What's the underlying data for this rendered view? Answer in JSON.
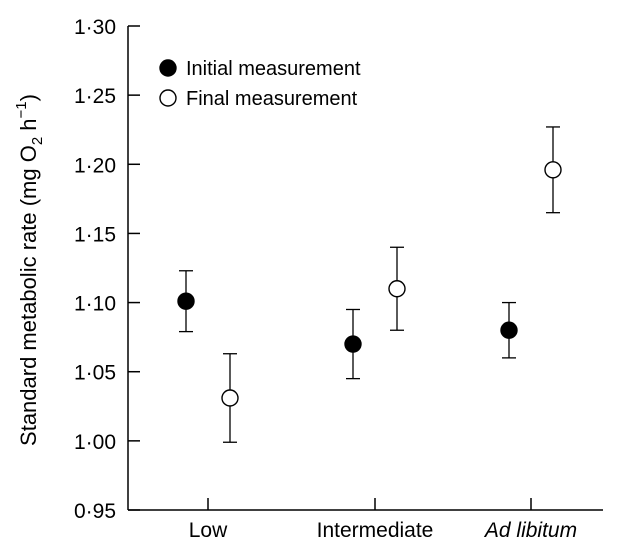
{
  "chart_data": {
    "type": "scatter",
    "categories": [
      "Low",
      "Intermediate",
      "Ad libitum"
    ],
    "category_italic": [
      false,
      false,
      true
    ],
    "ylabel": {
      "main": "Standard metabolic rate (mg O",
      "sub": "2",
      "mid": " h",
      "sup": "−1",
      "close": ")"
    },
    "ylim": [
      0.95,
      1.3
    ],
    "yticks": [
      "0·95",
      "1·00",
      "1·05",
      "1·10",
      "1·15",
      "1·20",
      "1·25",
      "1·30"
    ],
    "legend_position": "top-left",
    "series": [
      {
        "name": "Initial measurement",
        "marker": "filled-circle",
        "color": "#000000",
        "values": [
          1.101,
          1.07,
          1.08
        ],
        "err_low": [
          1.079,
          1.045,
          1.06
        ],
        "err_high": [
          1.123,
          1.095,
          1.1
        ]
      },
      {
        "name": "Final measurement",
        "marker": "open-circle",
        "color": "#000000",
        "values": [
          1.031,
          1.11,
          1.196
        ],
        "err_low": [
          0.999,
          1.08,
          1.165
        ],
        "err_high": [
          1.063,
          1.14,
          1.227
        ]
      }
    ]
  }
}
